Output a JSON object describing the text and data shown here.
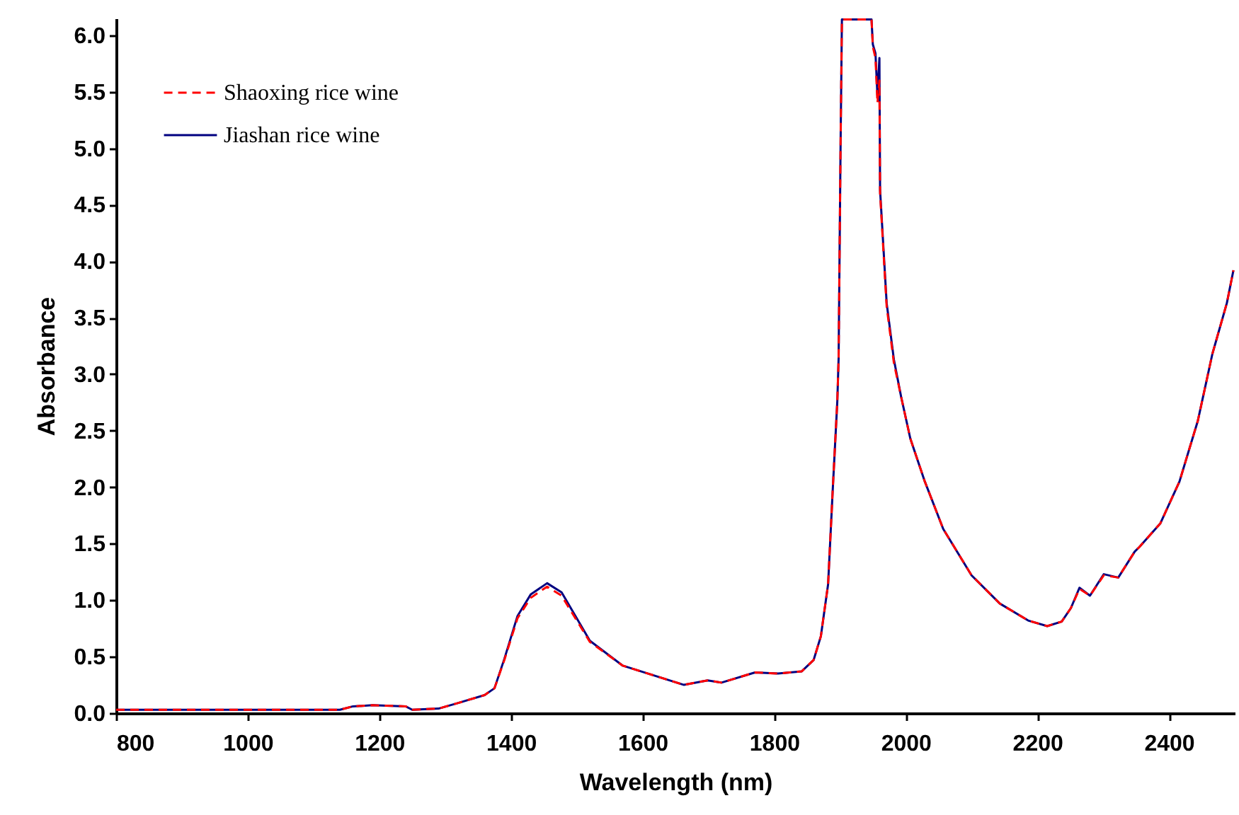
{
  "chart_data": {
    "type": "line",
    "xlabel": "Wavelength (nm)",
    "ylabel": "Absorbance",
    "xlim": [
      800,
      2500
    ],
    "xticks": [
      800,
      1000,
      1200,
      1400,
      1600,
      1800,
      2000,
      2200,
      2400
    ],
    "ylim": [
      0,
      6.15
    ],
    "yticks": [
      {
        "value": 0,
        "label": "0.0"
      },
      0.5,
      {
        "value": 1,
        "label": "1.0"
      },
      1.5,
      {
        "value": 2,
        "label": "2.0"
      },
      2.5,
      {
        "value": 3,
        "label": "3.0"
      },
      3.5,
      {
        "value": 4,
        "label": "4.0"
      },
      4.5,
      {
        "value": 5,
        "label": "5.0"
      },
      5.5,
      {
        "value": 6,
        "label": "6.0"
      }
    ],
    "grid": false,
    "legend": "top left",
    "marker": "none",
    "x": [
      800,
      1140,
      1160,
      1190,
      1240,
      1250,
      1290,
      1320,
      1360,
      1375,
      1390,
      1410,
      1430,
      1455,
      1477,
      1520,
      1570,
      1663,
      1699,
      1720,
      1771,
      1806,
      1842,
      1860,
      1871,
      1882,
      1889,
      1896,
      1898,
      1901,
      1903,
      1948,
      1950,
      1954,
      1957,
      1960,
      1961,
      1966,
      1971,
      1982,
      1993,
      2007,
      2029,
      2057,
      2100,
      2143,
      2186,
      2215,
      2237,
      2251,
      2264,
      2280,
      2301,
      2323,
      2348,
      2355,
      2387,
      2416,
      2444,
      2466,
      2488,
      2498
    ],
    "series": [
      {
        "name": "Shaoxing rice wine",
        "color": "#ff0000",
        "line_style": "dashed",
        "values": [
          0.03,
          0.03,
          0.06,
          0.07,
          0.06,
          0.03,
          0.04,
          0.09,
          0.16,
          0.22,
          0.47,
          0.84,
          1.02,
          1.12,
          1.04,
          0.63,
          0.42,
          0.25,
          0.29,
          0.27,
          0.36,
          0.35,
          0.37,
          0.47,
          0.68,
          1.14,
          1.97,
          2.76,
          3.14,
          5.05,
          6.14,
          6.14,
          5.9,
          5.8,
          5.4,
          5.6,
          4.6,
          4.1,
          3.6,
          3.1,
          2.8,
          2.43,
          2.05,
          1.63,
          1.22,
          0.97,
          0.82,
          0.77,
          0.81,
          0.93,
          1.1,
          1.04,
          1.22,
          1.2,
          1.43,
          1.47,
          1.68,
          2.05,
          2.59,
          3.18,
          3.63,
          3.92
        ]
      },
      {
        "name": "Jiashan rice wine",
        "color": "#000080",
        "line_style": "solid",
        "values": [
          0.03,
          0.03,
          0.06,
          0.07,
          0.06,
          0.03,
          0.04,
          0.09,
          0.16,
          0.22,
          0.48,
          0.86,
          1.05,
          1.15,
          1.07,
          0.64,
          0.42,
          0.25,
          0.29,
          0.27,
          0.36,
          0.35,
          0.37,
          0.47,
          0.68,
          1.14,
          1.97,
          2.76,
          3.14,
          5.05,
          6.14,
          6.14,
          5.92,
          5.84,
          5.47,
          5.8,
          4.63,
          4.13,
          3.63,
          3.13,
          2.8,
          2.43,
          2.05,
          1.63,
          1.22,
          0.97,
          0.82,
          0.77,
          0.81,
          0.93,
          1.11,
          1.04,
          1.23,
          1.2,
          1.43,
          1.47,
          1.68,
          2.05,
          2.59,
          3.18,
          3.63,
          3.92
        ]
      }
    ]
  }
}
